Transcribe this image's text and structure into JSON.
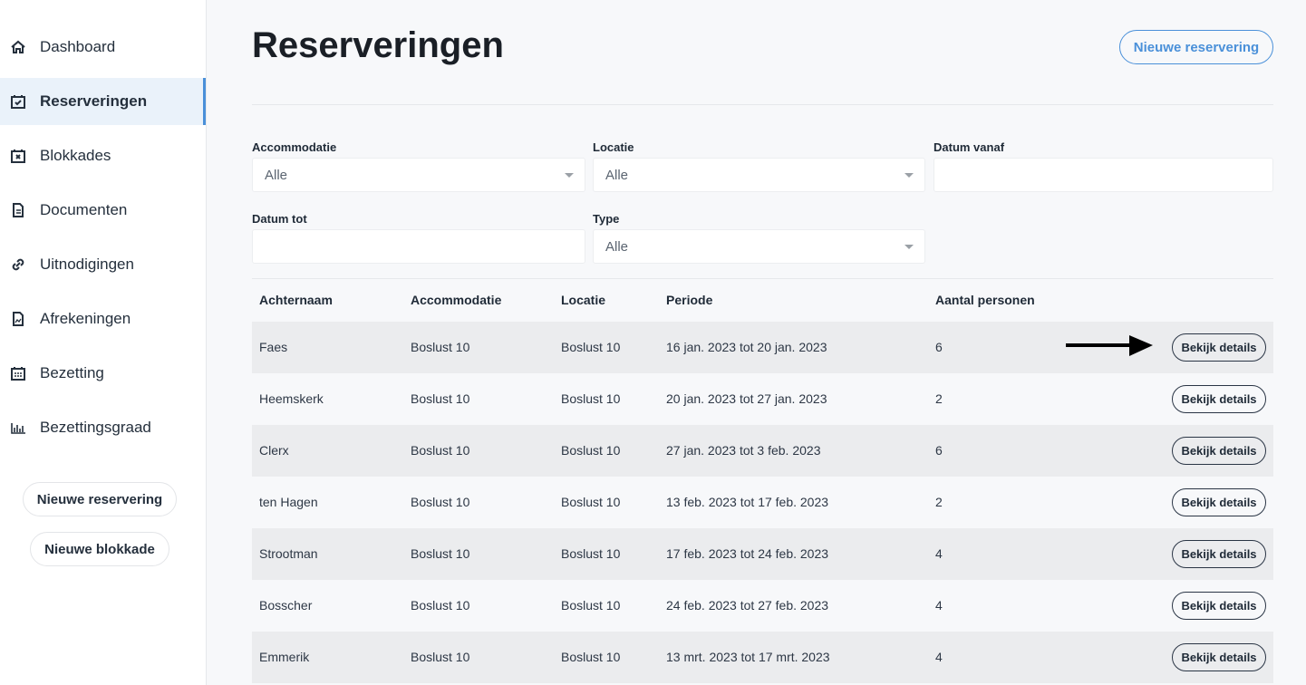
{
  "sidebar": {
    "items": [
      {
        "label": "Dashboard",
        "icon": "home-icon"
      },
      {
        "label": "Reserveringen",
        "icon": "calendar-check-icon",
        "active": true
      },
      {
        "label": "Blokkades",
        "icon": "calendar-x-icon"
      },
      {
        "label": "Documenten",
        "icon": "document-icon"
      },
      {
        "label": "Uitnodigingen",
        "icon": "link-icon"
      },
      {
        "label": "Afrekeningen",
        "icon": "receipt-icon"
      },
      {
        "label": "Bezetting",
        "icon": "calendar-grid-icon"
      },
      {
        "label": "Bezettingsgraad",
        "icon": "bar-chart-icon"
      }
    ],
    "new_reservation": "Nieuwe reservering",
    "new_block": "Nieuwe blokkade"
  },
  "header": {
    "title": "Reserveringen",
    "new_button": "Nieuwe reservering"
  },
  "filters": {
    "accommodatie": {
      "label": "Accommodatie",
      "value": "Alle"
    },
    "locatie": {
      "label": "Locatie",
      "value": "Alle"
    },
    "datum_vanaf": {
      "label": "Datum vanaf",
      "value": ""
    },
    "datum_tot": {
      "label": "Datum tot",
      "value": ""
    },
    "type": {
      "label": "Type",
      "value": "Alle"
    }
  },
  "table": {
    "headers": [
      "Achternaam",
      "Accommodatie",
      "Locatie",
      "Periode",
      "Aantal personen"
    ],
    "action_label": "Bekijk details",
    "rows": [
      [
        "Faes",
        "Boslust 10",
        "Boslust 10",
        "16 jan. 2023 tot 20 jan. 2023",
        "6"
      ],
      [
        "Heemskerk",
        "Boslust 10",
        "Boslust 10",
        "20 jan. 2023 tot 27 jan. 2023",
        "2"
      ],
      [
        "Clerx",
        "Boslust 10",
        "Boslust 10",
        "27 jan. 2023 tot 3 feb. 2023",
        "6"
      ],
      [
        "ten Hagen",
        "Boslust 10",
        "Boslust 10",
        "13 feb. 2023 tot 17 feb. 2023",
        "2"
      ],
      [
        "Strootman",
        "Boslust 10",
        "Boslust 10",
        "17 feb. 2023 tot 24 feb. 2023",
        "4"
      ],
      [
        "Bosscher",
        "Boslust 10",
        "Boslust 10",
        "24 feb. 2023 tot 27 feb. 2023",
        "4"
      ],
      [
        "Emmerik",
        "Boslust 10",
        "Boslust 10",
        "13 mrt. 2023 tot 17 mrt. 2023",
        "4"
      ]
    ]
  },
  "colors": {
    "accent": "#4a90d9",
    "active_bg": "#eaf2fa",
    "row_alt": "#ebecee"
  }
}
